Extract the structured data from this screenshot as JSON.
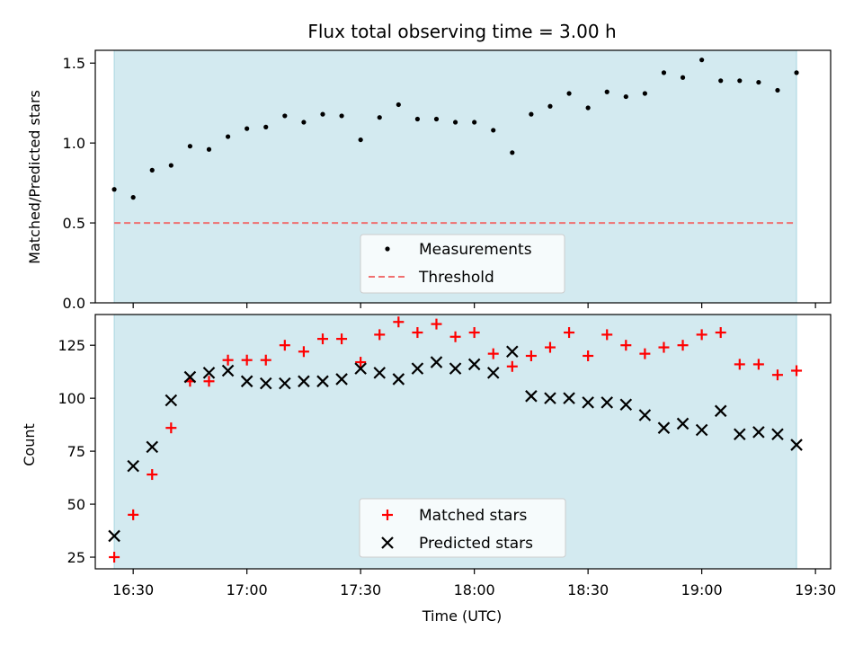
{
  "colors": {
    "span_fill": "#d3eaf0",
    "span_edge": "#a8d6e0",
    "measurement": "#000000",
    "threshold": "#f07070",
    "matched": "#ff0000",
    "predicted": "#000000"
  },
  "chart_data": [
    {
      "type": "scatter",
      "title": "Flux total observing time = 3.00 h",
      "ylabel": "Matched/Predicted stars",
      "xlim": [
        "16:20",
        "19:34"
      ],
      "ylim": [
        0,
        1.58
      ],
      "yticks": [
        0.0,
        0.5,
        1.0,
        1.5
      ],
      "ytick_labels": [
        "0.0",
        "0.5",
        "1.0",
        "1.5"
      ],
      "shaded_span": [
        "16:25",
        "19:25"
      ],
      "threshold": {
        "name": "Threshold",
        "value": 0.5
      },
      "legend_position": "lower-center",
      "series": [
        {
          "name": "Measurements",
          "x": [
            "16:25",
            "16:30",
            "16:35",
            "16:40",
            "16:45",
            "16:50",
            "16:55",
            "17:00",
            "17:05",
            "17:10",
            "17:15",
            "17:20",
            "17:25",
            "17:30",
            "17:35",
            "17:40",
            "17:45",
            "17:50",
            "17:55",
            "18:00",
            "18:05",
            "18:10",
            "18:15",
            "18:20",
            "18:25",
            "18:30",
            "18:35",
            "18:40",
            "18:45",
            "18:50",
            "18:55",
            "19:00",
            "19:05",
            "19:10",
            "19:15",
            "19:20",
            "19:25"
          ],
          "values": [
            0.71,
            0.66,
            0.83,
            0.86,
            0.98,
            0.96,
            1.04,
            1.09,
            1.1,
            1.17,
            1.13,
            1.18,
            1.17,
            1.02,
            1.16,
            1.24,
            1.15,
            1.15,
            1.13,
            1.13,
            1.08,
            0.94,
            1.18,
            1.23,
            1.31,
            1.22,
            1.32,
            1.29,
            1.31,
            1.44,
            1.41,
            1.52,
            1.39,
            1.39,
            1.38,
            1.33,
            1.44
          ]
        }
      ]
    },
    {
      "type": "scatter",
      "xlabel": "Time (UTC)",
      "ylabel": "Count",
      "xlim": [
        "16:20",
        "19:34"
      ],
      "ylim": [
        19.5,
        139.5
      ],
      "yticks": [
        25,
        50,
        75,
        100,
        125
      ],
      "ytick_labels": [
        "25",
        "50",
        "75",
        "100",
        "125"
      ],
      "xticks": [
        "16:30",
        "17:00",
        "17:30",
        "18:00",
        "18:30",
        "19:00",
        "19:30"
      ],
      "shaded_span": [
        "16:25",
        "19:25"
      ],
      "legend_position": "lower-center",
      "x": [
        "16:25",
        "16:30",
        "16:35",
        "16:40",
        "16:45",
        "16:50",
        "16:55",
        "17:00",
        "17:05",
        "17:10",
        "17:15",
        "17:20",
        "17:25",
        "17:30",
        "17:35",
        "17:40",
        "17:45",
        "17:50",
        "17:55",
        "18:00",
        "18:05",
        "18:10",
        "18:15",
        "18:20",
        "18:25",
        "18:30",
        "18:35",
        "18:40",
        "18:45",
        "18:50",
        "18:55",
        "19:00",
        "19:05",
        "19:10",
        "19:15",
        "19:20",
        "19:25"
      ],
      "series": [
        {
          "name": "Matched stars",
          "marker": "+",
          "values": [
            25,
            45,
            64,
            86,
            108,
            108,
            118,
            118,
            118,
            125,
            122,
            128,
            128,
            117,
            130,
            136,
            131,
            135,
            129,
            131,
            121,
            115,
            120,
            124,
            131,
            120,
            130,
            125,
            121,
            124,
            125,
            130,
            131,
            116,
            116,
            111,
            113
          ]
        },
        {
          "name": "Predicted stars",
          "marker": "x",
          "values": [
            35,
            68,
            77,
            99,
            110,
            112,
            113,
            108,
            107,
            107,
            108,
            108,
            109,
            114,
            112,
            109,
            114,
            117,
            114,
            116,
            112,
            122,
            101,
            100,
            100,
            98,
            98,
            97,
            92,
            86,
            88,
            85,
            94,
            83,
            84,
            83,
            78
          ]
        }
      ]
    }
  ]
}
